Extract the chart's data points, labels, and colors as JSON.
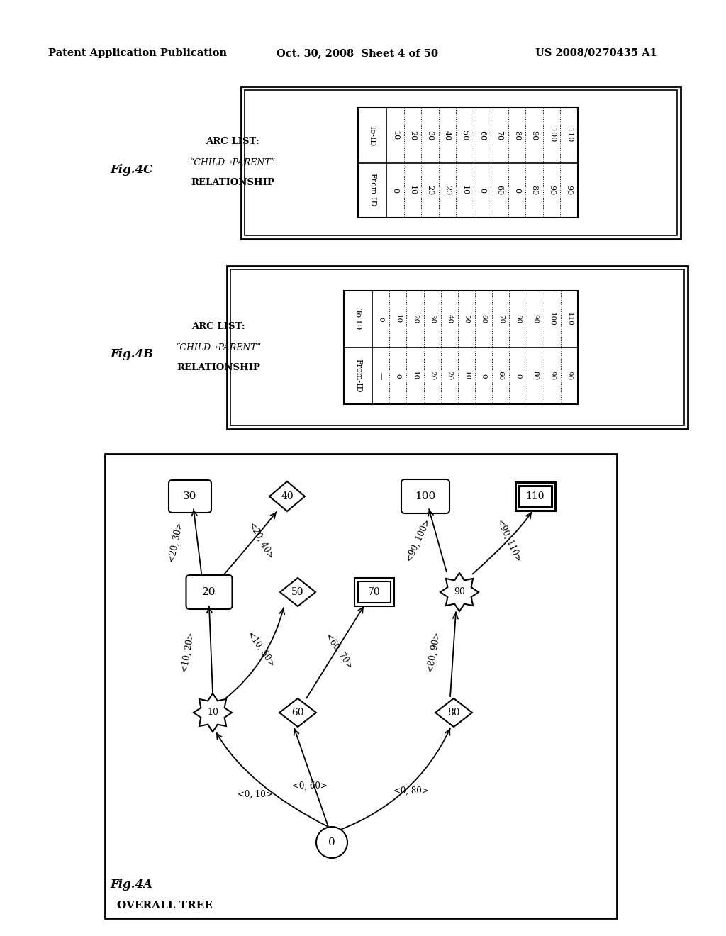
{
  "header_left": "Patent Application Publication",
  "header_mid": "Oct. 30, 2008  Sheet 4 of 50",
  "header_right": "US 2008/0270435 A1",
  "fig4c_label": "Fig.4C",
  "fig4c_arc_label1": "ARC LIST:",
  "fig4c_arc_label2": "“CHILD→PARENT”",
  "fig4c_arc_label3": "RELATIONSHIP",
  "fig4c_toid": [
    10,
    20,
    30,
    40,
    50,
    60,
    70,
    80,
    90,
    100,
    110
  ],
  "fig4c_fromid": [
    0,
    10,
    20,
    20,
    10,
    0,
    60,
    0,
    80,
    90,
    90
  ],
  "fig4b_label": "Fig.4B",
  "fig4b_arc_label1": "ARC LIST:",
  "fig4b_arc_label2": "“CHILD→PARENT”",
  "fig4b_arc_label3": "RELATIONSHIP",
  "fig4b_toid": [
    0,
    10,
    20,
    30,
    40,
    50,
    60,
    70,
    80,
    90,
    100,
    110
  ],
  "fig4b_fromid": [
    "—",
    0,
    10,
    20,
    20,
    10,
    0,
    60,
    0,
    80,
    90,
    90
  ],
  "fig4a_label": "Fig.4A",
  "fig4a_subtitle": "OVERALL TREE",
  "bg_color": "#ffffff",
  "line_color": "#000000"
}
